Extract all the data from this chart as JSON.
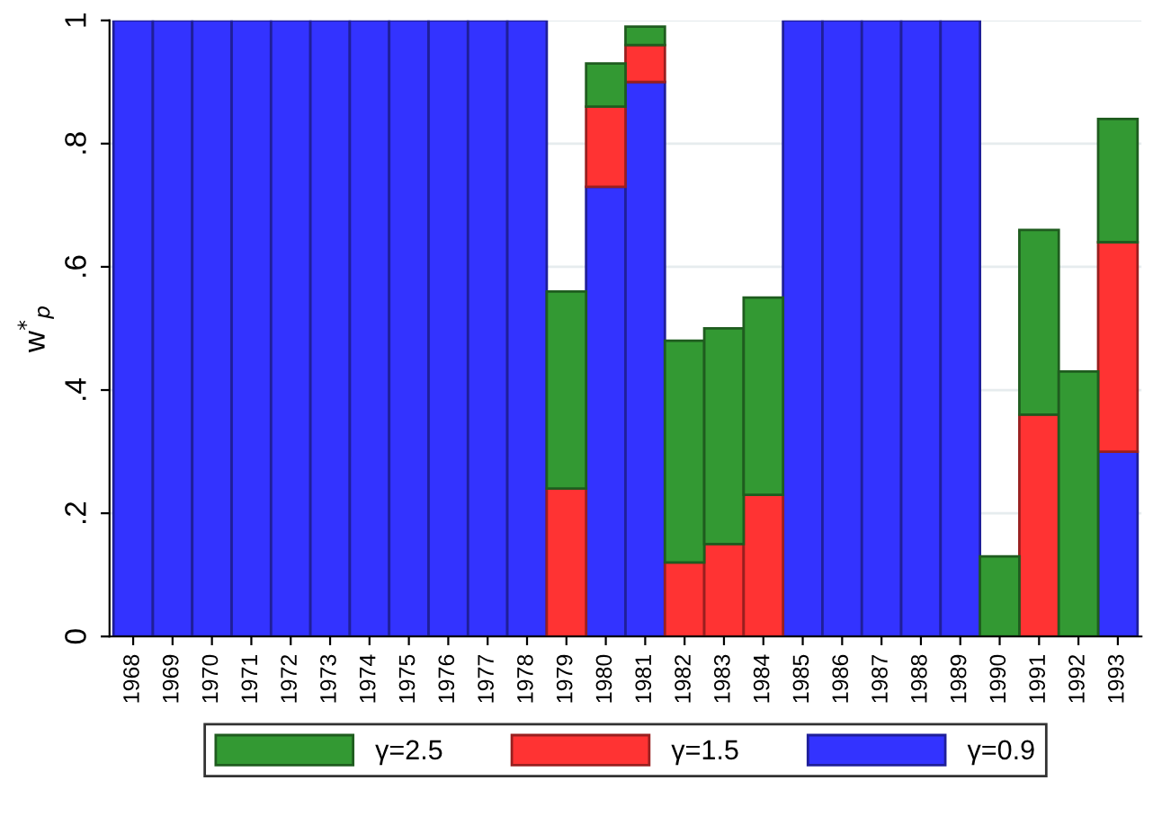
{
  "chart_data": {
    "type": "bar",
    "stacked": true,
    "ylabel": "w$^{*}$$_{p}$",
    "categories": [
      "1968",
      "1969",
      "1970",
      "1971",
      "1972",
      "1973",
      "1974",
      "1975",
      "1976",
      "1977",
      "1978",
      "1979",
      "1980",
      "1981",
      "1982",
      "1983",
      "1984",
      "1985",
      "1986",
      "1987",
      "1988",
      "1989",
      "1990",
      "1991",
      "1992",
      "1993"
    ],
    "series": [
      {
        "name": "γ=0.9",
        "color": "#3333ff",
        "values": [
          1,
          1,
          1,
          1,
          1,
          1,
          1,
          1,
          1,
          1,
          1,
          0,
          0.73,
          0.9,
          0,
          0,
          0,
          1,
          1,
          1,
          1,
          1,
          0,
          0,
          0,
          0.3
        ]
      },
      {
        "name": "γ=1.5",
        "color": "#ff3333",
        "values": [
          0,
          0,
          0,
          0,
          0,
          0,
          0,
          0,
          0,
          0,
          0,
          0.24,
          0.13,
          0.06,
          0.12,
          0.15,
          0.23,
          0,
          0,
          0,
          0,
          0,
          0,
          0.36,
          0,
          0.34
        ]
      },
      {
        "name": "γ=2.5",
        "color": "#339933",
        "values": [
          0,
          0,
          0,
          0,
          0,
          0,
          0,
          0,
          0,
          0,
          0,
          0.32,
          0.07,
          0.03,
          0.36,
          0.35,
          0.32,
          0,
          0,
          0,
          0,
          0,
          0.13,
          0.3,
          0.43,
          0.2
        ]
      }
    ],
    "ylim": [
      0,
      1
    ],
    "yticks": [
      0,
      {
        "value": 0.2,
        "label": ".2"
      },
      {
        "value": 0.4,
        "label": ".4"
      },
      {
        "value": 0.6,
        "label": ".6"
      },
      {
        "value": 0.8,
        "label": ".8"
      },
      1
    ],
    "grid": "y",
    "legend": "bottom"
  }
}
